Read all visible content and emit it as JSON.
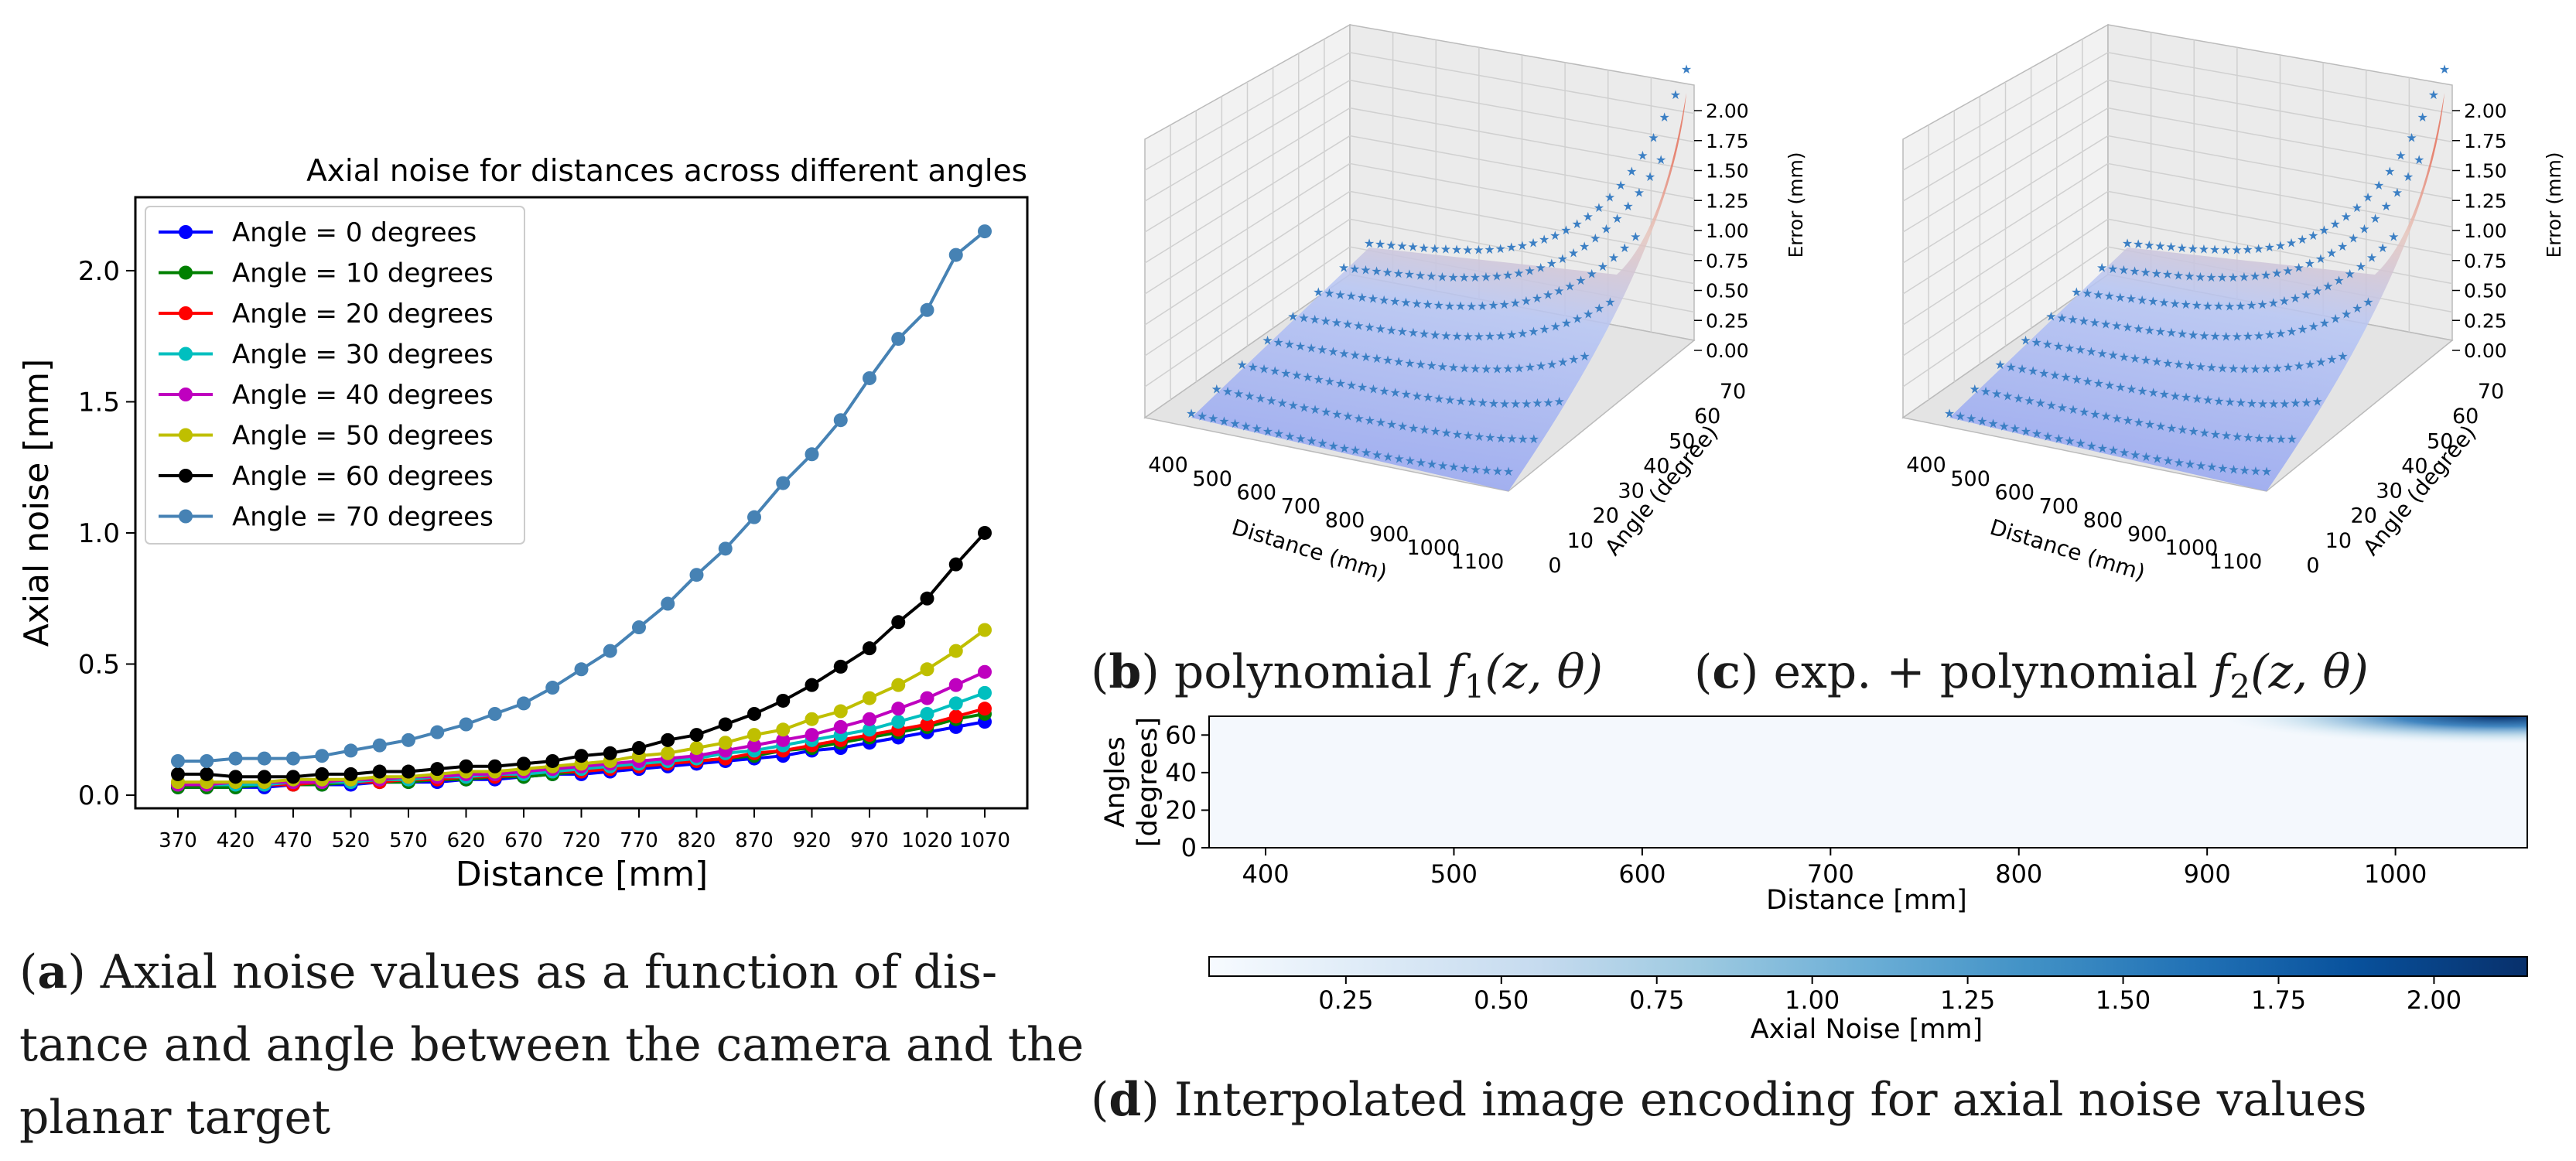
{
  "chart_data": [
    {
      "type": "line",
      "title": "Axial noise for distances across different angles",
      "xlabel": "Distance [mm]",
      "ylabel": "Axial noise [mm]",
      "xlim": [
        370,
        1070
      ],
      "ylim": [
        -0.05,
        2.28
      ],
      "xticks": [
        "370",
        "420",
        "470",
        "520",
        "570",
        "620",
        "670",
        "720",
        "770",
        "820",
        "870",
        "920",
        "970",
        "1020",
        "1070"
      ],
      "yticks": [
        "0.0",
        "0.5",
        "1.0",
        "1.5",
        "2.0"
      ],
      "legend": "top-left",
      "x": [
        370,
        395,
        420,
        445,
        470,
        495,
        520,
        545,
        570,
        595,
        620,
        645,
        670,
        695,
        720,
        745,
        770,
        795,
        820,
        845,
        870,
        895,
        920,
        945,
        970,
        995,
        1020,
        1045,
        1070
      ],
      "series": [
        {
          "name": "Angle = 0 degrees",
          "color": "#0000ff",
          "values": [
            0.03,
            0.03,
            0.03,
            0.03,
            0.04,
            0.04,
            0.04,
            0.05,
            0.05,
            0.05,
            0.06,
            0.06,
            0.07,
            0.08,
            0.08,
            0.09,
            0.1,
            0.11,
            0.12,
            0.13,
            0.14,
            0.15,
            0.17,
            0.18,
            0.2,
            0.22,
            0.24,
            0.26,
            0.28
          ]
        },
        {
          "name": "Angle = 10 degrees",
          "color": "#008000",
          "values": [
            0.03,
            0.03,
            0.03,
            0.04,
            0.04,
            0.04,
            0.05,
            0.05,
            0.05,
            0.06,
            0.06,
            0.07,
            0.07,
            0.08,
            0.09,
            0.1,
            0.11,
            0.12,
            0.13,
            0.14,
            0.15,
            0.17,
            0.18,
            0.2,
            0.22,
            0.24,
            0.26,
            0.29,
            0.31
          ]
        },
        {
          "name": "Angle = 20 degrees",
          "color": "#ff0000",
          "values": [
            0.04,
            0.04,
            0.04,
            0.04,
            0.04,
            0.05,
            0.05,
            0.05,
            0.06,
            0.06,
            0.07,
            0.07,
            0.08,
            0.09,
            0.09,
            0.1,
            0.11,
            0.12,
            0.13,
            0.14,
            0.16,
            0.17,
            0.19,
            0.21,
            0.23,
            0.25,
            0.27,
            0.3,
            0.33
          ]
        },
        {
          "name": "Angle = 30 degrees",
          "color": "#00bfbf",
          "values": [
            0.04,
            0.04,
            0.04,
            0.04,
            0.05,
            0.05,
            0.05,
            0.06,
            0.06,
            0.07,
            0.07,
            0.08,
            0.08,
            0.09,
            0.1,
            0.11,
            0.12,
            0.13,
            0.14,
            0.16,
            0.17,
            0.19,
            0.21,
            0.23,
            0.25,
            0.28,
            0.31,
            0.35,
            0.39
          ]
        },
        {
          "name": "Angle = 40 degrees",
          "color": "#bf00bf",
          "values": [
            0.04,
            0.04,
            0.05,
            0.05,
            0.05,
            0.05,
            0.06,
            0.06,
            0.07,
            0.07,
            0.08,
            0.08,
            0.09,
            0.1,
            0.11,
            0.12,
            0.13,
            0.14,
            0.15,
            0.17,
            0.19,
            0.21,
            0.23,
            0.26,
            0.29,
            0.33,
            0.37,
            0.42,
            0.47
          ]
        },
        {
          "name": "Angle = 50 degrees",
          "color": "#bfbf00",
          "values": [
            0.05,
            0.05,
            0.05,
            0.05,
            0.06,
            0.06,
            0.06,
            0.07,
            0.07,
            0.08,
            0.09,
            0.09,
            0.1,
            0.11,
            0.12,
            0.13,
            0.15,
            0.16,
            0.18,
            0.2,
            0.23,
            0.25,
            0.29,
            0.32,
            0.37,
            0.42,
            0.48,
            0.55,
            0.63
          ]
        },
        {
          "name": "Angle = 60 degrees",
          "color": "#000000",
          "values": [
            0.08,
            0.08,
            0.07,
            0.07,
            0.07,
            0.08,
            0.08,
            0.09,
            0.09,
            0.1,
            0.11,
            0.11,
            0.12,
            0.13,
            0.15,
            0.16,
            0.18,
            0.21,
            0.23,
            0.27,
            0.31,
            0.36,
            0.42,
            0.49,
            0.56,
            0.66,
            0.75,
            0.88,
            1.0
          ]
        },
        {
          "name": "Angle = 70 degrees",
          "color": "#4682b4",
          "values": [
            0.13,
            0.13,
            0.14,
            0.14,
            0.14,
            0.15,
            0.17,
            0.19,
            0.21,
            0.24,
            0.27,
            0.31,
            0.35,
            0.41,
            0.48,
            0.55,
            0.64,
            0.73,
            0.84,
            0.94,
            1.06,
            1.19,
            1.3,
            1.43,
            1.59,
            1.74,
            1.85,
            2.06,
            2.15
          ]
        }
      ]
    },
    {
      "type": "surface3d",
      "xlabel": "Distance (mm)",
      "ylabel": "Angle (degree)",
      "zlabel": "Error (mm)",
      "xticks": [
        "400",
        "500",
        "600",
        "700",
        "800",
        "900",
        "1000",
        "1100"
      ],
      "yticks": [
        "0",
        "10",
        "20",
        "30",
        "40",
        "50",
        "60",
        "70"
      ],
      "zticks": [
        "0.00",
        "0.25",
        "0.50",
        "0.75",
        "1.00",
        "1.25",
        "1.50",
        "1.75",
        "2.00"
      ],
      "x_range": [
        370,
        1100
      ],
      "y_range": [
        0,
        70
      ],
      "z_range": [
        0,
        2.15
      ]
    },
    {
      "type": "surface3d",
      "xlabel": "Distance (mm)",
      "ylabel": "Angle (degree)",
      "zlabel": "Error (mm)",
      "xticks": [
        "400",
        "500",
        "600",
        "700",
        "800",
        "900",
        "1000",
        "1100"
      ],
      "yticks": [
        "0",
        "10",
        "20",
        "30",
        "40",
        "50",
        "60",
        "70"
      ],
      "zticks": [
        "0.00",
        "0.25",
        "0.50",
        "0.75",
        "1.00",
        "1.25",
        "1.50",
        "1.75",
        "2.00"
      ],
      "x_range": [
        370,
        1100
      ],
      "y_range": [
        0,
        70
      ],
      "z_range": [
        0,
        2.15
      ]
    },
    {
      "type": "heatmap",
      "xlabel": "Distance [mm]",
      "ylabel": "Angles\n[degrees]",
      "ylabel_lines": [
        "Angles",
        "[degrees]"
      ],
      "xlim": [
        370,
        1070
      ],
      "ylim": [
        0,
        70
      ],
      "xticks": [
        "400",
        "500",
        "600",
        "700",
        "800",
        "900",
        "1000"
      ],
      "yticks": [
        "0",
        "20",
        "40",
        "60"
      ],
      "colorbar_label": "Axial Noise [mm]",
      "colorbar_ticks": [
        "0.25",
        "0.50",
        "0.75",
        "1.00",
        "1.25",
        "1.50",
        "1.75",
        "2.00"
      ],
      "colorbar_range": [
        0.03,
        2.15
      ],
      "colormap": "Blues"
    }
  ],
  "captions": {
    "a_label": "a",
    "a_lines": [
      "Axial noise values as a function of dis-",
      "tance and angle between the camera and the",
      "planar target"
    ],
    "b_label": "b",
    "b_text": "polynomial",
    "b_math": "f",
    "b_sub": "1",
    "b_args": "(z, θ)",
    "c_label": "c",
    "c_text": "exp. + polynomial",
    "c_math": "f",
    "c_sub": "2",
    "c_args": "(z, θ)",
    "d_label": "d",
    "d_text": "Interpolated image encoding for axial noise values"
  }
}
